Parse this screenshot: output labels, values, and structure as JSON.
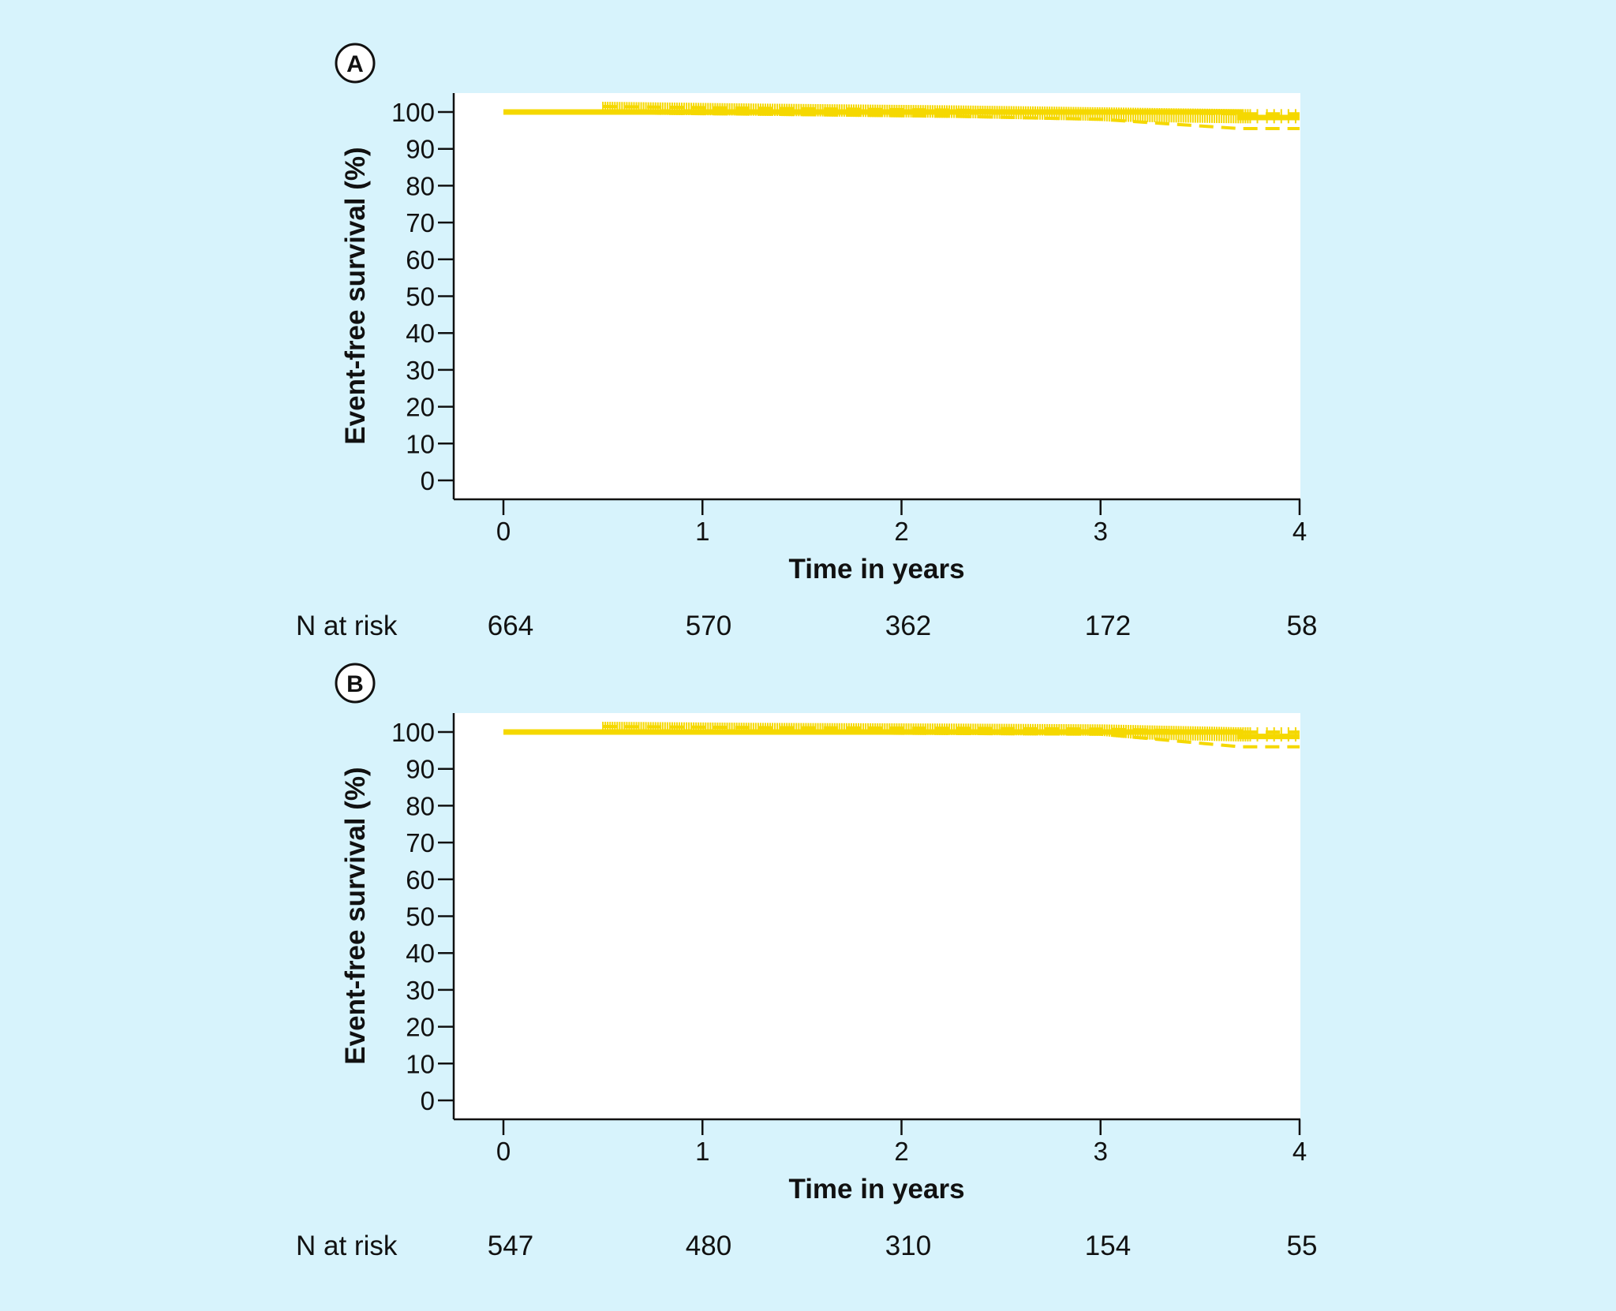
{
  "colors": {
    "background": "#d7f3fc",
    "plot_bg": "#ffffff",
    "curve": "#f5d800",
    "axis": "#111111"
  },
  "chart_data": [
    {
      "type": "line",
      "panel_label": "A",
      "xlabel": "Time in years",
      "ylabel": "Event-free survival (%)",
      "xticks": [
        "0",
        "1",
        "2",
        "3",
        "4"
      ],
      "yticks": [
        "0",
        "10",
        "20",
        "30",
        "40",
        "50",
        "60",
        "70",
        "80",
        "90",
        "100"
      ],
      "xlim": [
        -0.25,
        4
      ],
      "ylim": [
        -5,
        105
      ],
      "grid": false,
      "series": [
        {
          "style": "solid",
          "x": [
            0,
            3.7,
            3.7,
            4
          ],
          "y": [
            100,
            100,
            98.5,
            98.5
          ]
        },
        {
          "style": "dashed",
          "x": [
            0.5,
            1.3,
            2.3,
            3.0,
            3.7,
            4
          ],
          "y": [
            101.5,
            101.0,
            100.5,
            100.0,
            99.5,
            99.5
          ]
        },
        {
          "style": "dashed",
          "x": [
            0.5,
            1.3,
            2.3,
            3.0,
            3.7,
            4
          ],
          "y": [
            99.8,
            99.4,
            98.8,
            98.0,
            95.5,
            95.5
          ]
        }
      ],
      "n_at_risk": {
        "label": "N at risk",
        "values": [
          "664",
          "570",
          "362",
          "172",
          "58"
        ]
      }
    },
    {
      "type": "line",
      "panel_label": "B",
      "xlabel": "Time in years",
      "ylabel": "Event-free survival (%)",
      "xticks": [
        "0",
        "1",
        "2",
        "3",
        "4"
      ],
      "yticks": [
        "0",
        "10",
        "20",
        "30",
        "40",
        "50",
        "60",
        "70",
        "80",
        "90",
        "100"
      ],
      "xlim": [
        -0.25,
        4
      ],
      "ylim": [
        -5,
        105
      ],
      "grid": false,
      "series": [
        {
          "style": "solid",
          "x": [
            0,
            3.7,
            3.7,
            4
          ],
          "y": [
            100,
            100,
            98.8,
            98.8
          ]
        },
        {
          "style": "dashed",
          "x": [
            0.5,
            1.3,
            2.3,
            3.0,
            3.7,
            4
          ],
          "y": [
            101.5,
            101.2,
            101.0,
            100.8,
            100.0,
            100.0
          ]
        },
        {
          "style": "dashed",
          "x": [
            0.5,
            1.3,
            2.3,
            3.0,
            3.7,
            4
          ],
          "y": [
            99.9,
            99.8,
            99.6,
            99.4,
            96.0,
            96.0
          ]
        }
      ],
      "n_at_risk": {
        "label": "N at risk",
        "values": [
          "547",
          "480",
          "310",
          "154",
          "55"
        ]
      }
    }
  ]
}
